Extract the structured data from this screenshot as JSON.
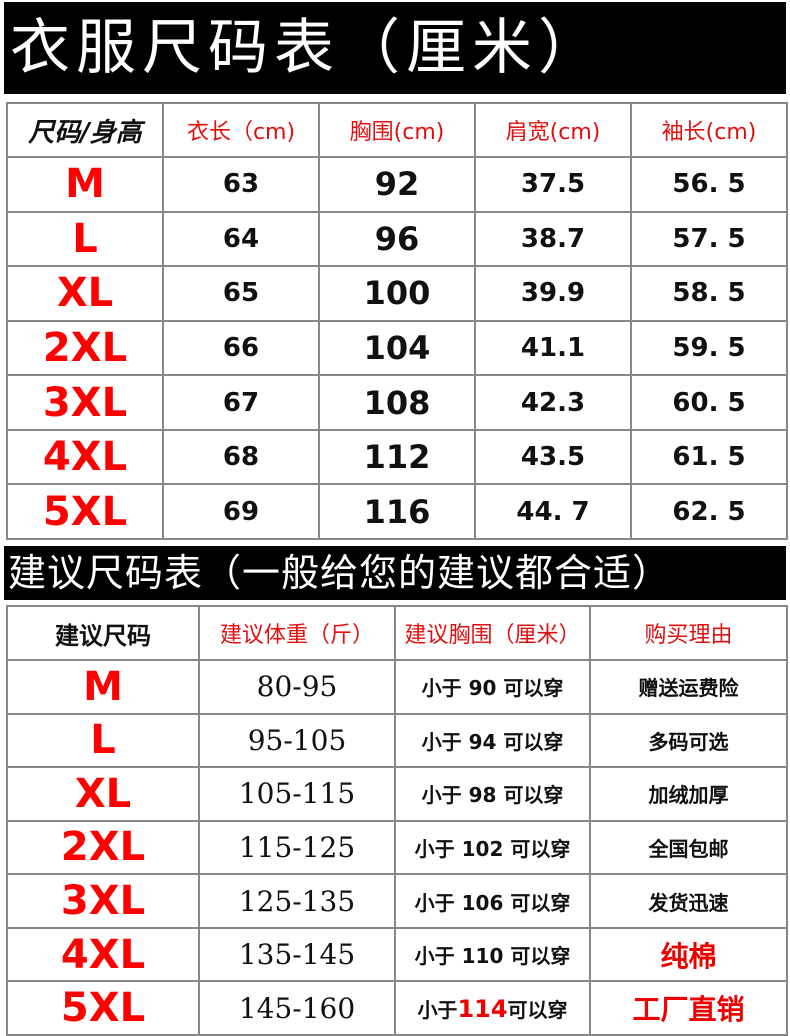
{
  "title": "衣服尺码表（厘米）",
  "size_table": {
    "headers": [
      "尺码/身高",
      "衣长（cm)",
      "胸围(cm)",
      "肩宽(cm)",
      "袖长(cm)"
    ],
    "rows": [
      [
        "M",
        "63",
        "92",
        "37.5",
        "56. 5"
      ],
      [
        "L",
        "64",
        "96",
        "38.7",
        "57. 5"
      ],
      [
        "XL",
        "65",
        "100",
        "39.9",
        "58. 5"
      ],
      [
        "2XL",
        "66",
        "104",
        "41.1",
        "59. 5"
      ],
      [
        "3XL",
        "67",
        "108",
        "42.3",
        "60. 5"
      ],
      [
        "4XL",
        "68",
        "112",
        "43.5",
        "61. 5"
      ],
      [
        "5XL",
        "69",
        "116",
        "44. 7",
        "62. 5"
      ]
    ]
  },
  "suggest_title": "建议尺码表（一般给您的建议都合适）",
  "suggest_table": {
    "headers": [
      "建议尺码",
      "建议体重（斤）",
      "建议胸围（厘米）",
      "购买理由"
    ],
    "rows": [
      {
        "size": "M",
        "weight": "80-95",
        "chest_pre": "小于 ",
        "chest_num": "90",
        "chest_post": " 可以穿",
        "reason": "赠送运费险",
        "reason_red": false
      },
      {
        "size": "L",
        "weight": "95-105",
        "chest_pre": "小于 ",
        "chest_num": "94",
        "chest_post": " 可以穿",
        "reason": "多码可选",
        "reason_red": false
      },
      {
        "size": "XL",
        "weight": "105-115",
        "chest_pre": "小于 ",
        "chest_num": "98",
        "chest_post": " 可以穿",
        "reason": "加绒加厚",
        "reason_red": false
      },
      {
        "size": "2XL",
        "weight": "115-125",
        "chest_pre": "小于 ",
        "chest_num": "102",
        "chest_post": " 可以穿",
        "reason": "全国包邮",
        "reason_red": false
      },
      {
        "size": "3XL",
        "weight": "125-135",
        "chest_pre": "小于 ",
        "chest_num": "106",
        "chest_post": " 可以穿",
        "reason": "发货迅速",
        "reason_red": false
      },
      {
        "size": "4XL",
        "weight": "135-145",
        "chest_pre": "小于 ",
        "chest_num": "110",
        "chest_post": " 可以穿",
        "reason": "纯棉",
        "reason_red": true
      },
      {
        "size": "5XL",
        "weight": "145-160",
        "chest_pre": "小于",
        "chest_num": "114",
        "chest_post": "可以穿",
        "reason": "工厂直销",
        "reason_red": true,
        "num_red": true
      }
    ]
  },
  "colors": {
    "accent_red": "#ff0000",
    "bar_bg": "#000000"
  }
}
